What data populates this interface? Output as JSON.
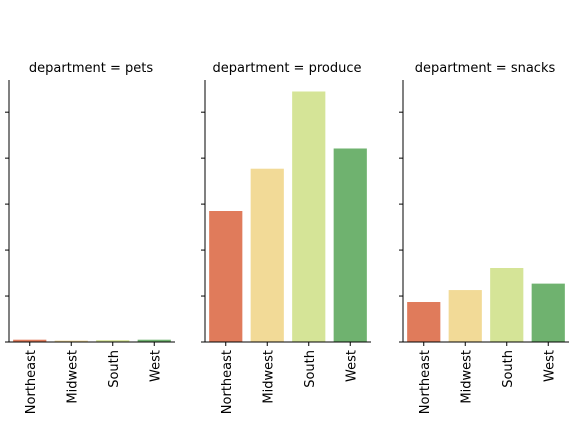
{
  "chart_data": {
    "type": "bar",
    "facet_variable": "department",
    "shared_y_axis": true,
    "y_tick_labels_shown": false,
    "ylim": [
      0,
      5.7
    ],
    "yticks": [
      0,
      1,
      2,
      3,
      4,
      5
    ],
    "categories": [
      "Northeast",
      "Midwest",
      "South",
      "West"
    ],
    "colors": [
      "#e07b5b",
      "#f2da97",
      "#d5e497",
      "#6fb26f"
    ],
    "panels": [
      {
        "title": "department = pets",
        "values": [
          0.05,
          0.03,
          0.04,
          0.05
        ]
      },
      {
        "title": "department = produce",
        "values": [
          2.85,
          3.77,
          5.45,
          4.21
        ]
      },
      {
        "title": "department = snacks",
        "values": [
          0.87,
          1.13,
          1.61,
          1.27
        ]
      }
    ]
  }
}
